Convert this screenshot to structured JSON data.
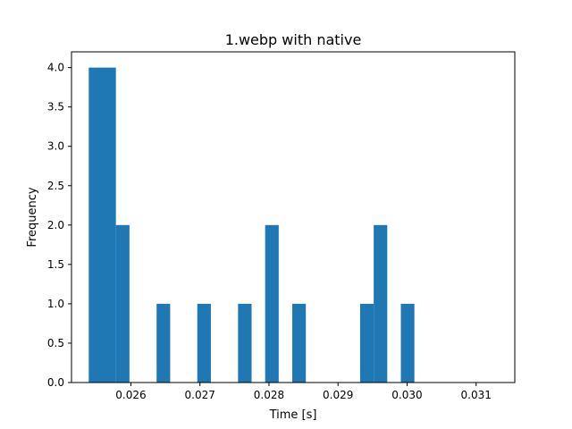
{
  "chart_data": {
    "type": "bar",
    "title": "1.webp with native",
    "xlabel": "Time [s]",
    "ylabel": "Frequency",
    "xlim": [
      0.02514,
      0.03156
    ],
    "ylim": [
      0,
      4.2
    ],
    "bin_start": 0.02539,
    "bin_width": 0.0001965,
    "counts": [
      4,
      4,
      2,
      0,
      0,
      1,
      0,
      0,
      1,
      0,
      0,
      1,
      0,
      2,
      0,
      1,
      0,
      0,
      0,
      0,
      1,
      2,
      0,
      1
    ],
    "x_ticks": [
      {
        "value": 0.026,
        "label": "0.026"
      },
      {
        "value": 0.027,
        "label": "0.027"
      },
      {
        "value": 0.028,
        "label": "0.028"
      },
      {
        "value": 0.029,
        "label": "0.029"
      },
      {
        "value": 0.03,
        "label": "0.030"
      },
      {
        "value": 0.031,
        "label": "0.031"
      }
    ],
    "y_ticks": [
      {
        "value": 0.0,
        "label": "0.0"
      },
      {
        "value": 0.5,
        "label": "0.5"
      },
      {
        "value": 1.0,
        "label": "1.0"
      },
      {
        "value": 1.5,
        "label": "1.5"
      },
      {
        "value": 2.0,
        "label": "2.0"
      },
      {
        "value": 2.5,
        "label": "2.5"
      },
      {
        "value": 3.0,
        "label": "3.0"
      },
      {
        "value": 3.5,
        "label": "3.5"
      },
      {
        "value": 4.0,
        "label": "4.0"
      }
    ],
    "grid": false,
    "bar_color": "#1f77b4"
  }
}
